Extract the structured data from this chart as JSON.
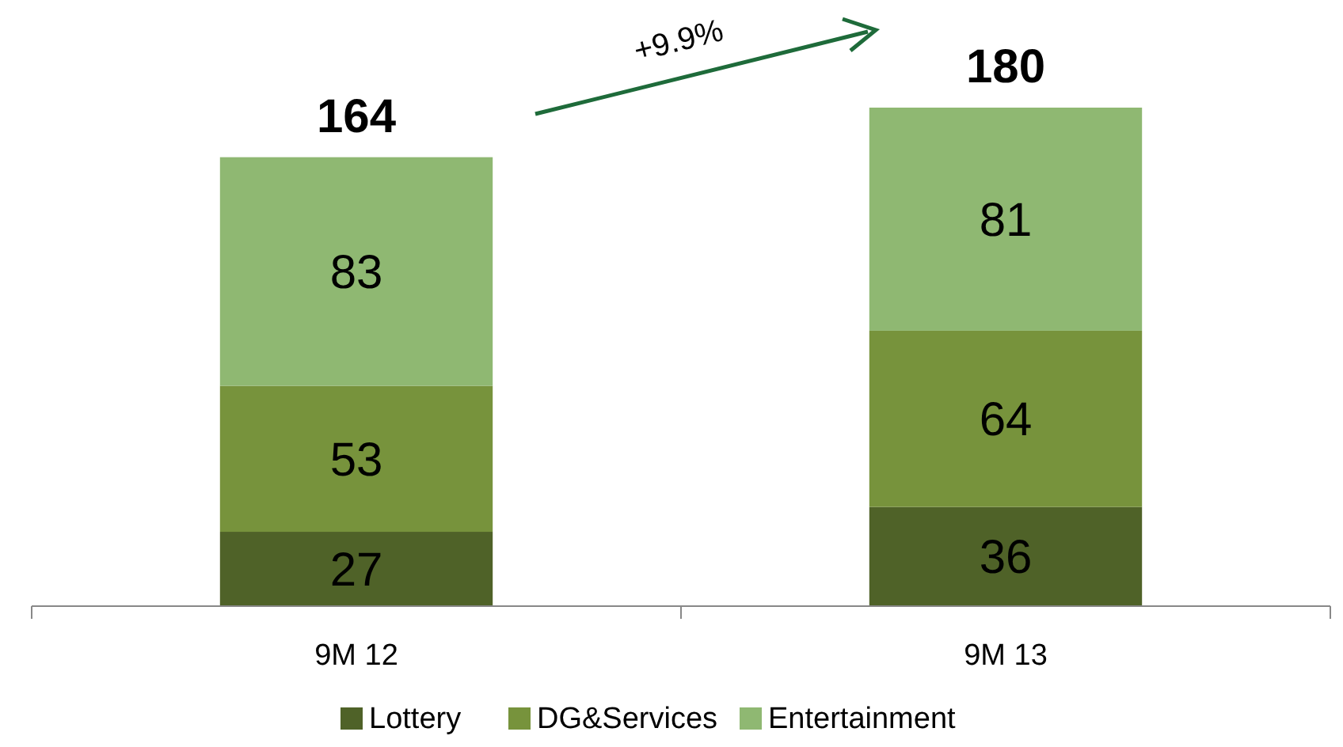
{
  "chart_data": {
    "type": "bar",
    "stacked": true,
    "categories": [
      "9M 12",
      "9M 13"
    ],
    "series": [
      {
        "name": "Lottery",
        "color": "#4f6228",
        "values": [
          27,
          36
        ]
      },
      {
        "name": "DG&Services",
        "color": "#77933c",
        "values": [
          53,
          64
        ]
      },
      {
        "name": "Entertainment",
        "color": "#8fb872",
        "values": [
          83,
          81
        ]
      }
    ],
    "data_labels": true,
    "totals": [
      "164",
      "180"
    ],
    "annotations": [
      "+9.9%"
    ],
    "legend": "bottom"
  }
}
